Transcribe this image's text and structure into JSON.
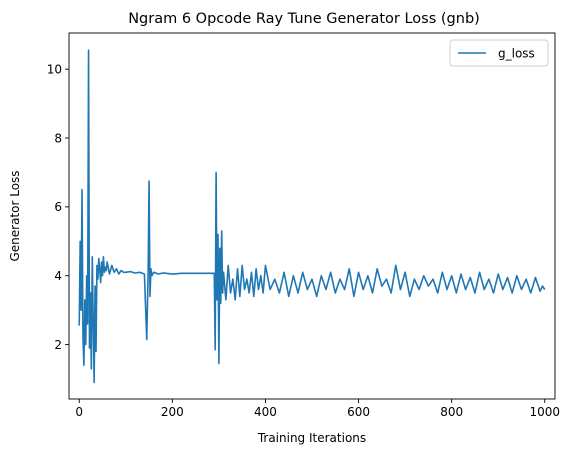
{
  "chart_data": {
    "type": "line",
    "title": "Ngram 6 Opcode Ray Tune Generator Loss (gnb)",
    "xlabel": "Training Iterations",
    "ylabel": "Generator Loss",
    "xlim": [
      -22,
      1022
    ],
    "ylim": [
      0.42,
      11.05
    ],
    "xticks": [
      0,
      200,
      400,
      600,
      800,
      1000
    ],
    "yticks": [
      2,
      4,
      6,
      8,
      10
    ],
    "grid": false,
    "legend_position": "top-right",
    "series_color": "#1f77b4",
    "series": [
      {
        "name": "g_loss",
        "x": [
          0,
          2,
          4,
          6,
          8,
          10,
          12,
          14,
          16,
          18,
          20,
          22,
          24,
          26,
          28,
          30,
          32,
          34,
          36,
          38,
          40,
          42,
          44,
          46,
          48,
          50,
          52,
          54,
          56,
          58,
          60,
          65,
          70,
          75,
          80,
          85,
          90,
          95,
          100,
          110,
          120,
          130,
          140,
          145,
          148,
          150,
          152,
          154,
          156,
          160,
          170,
          180,
          200,
          220,
          240,
          260,
          280,
          290,
          292,
          294,
          296,
          298,
          300,
          302,
          304,
          306,
          308,
          310,
          315,
          320,
          325,
          330,
          335,
          340,
          345,
          350,
          355,
          360,
          365,
          370,
          375,
          380,
          385,
          390,
          395,
          400,
          410,
          420,
          430,
          440,
          450,
          460,
          470,
          480,
          490,
          500,
          510,
          520,
          530,
          540,
          550,
          560,
          570,
          580,
          590,
          600,
          610,
          620,
          630,
          640,
          650,
          660,
          670,
          680,
          690,
          700,
          710,
          720,
          730,
          740,
          750,
          760,
          770,
          780,
          790,
          800,
          810,
          820,
          830,
          840,
          850,
          860,
          870,
          880,
          890,
          900,
          910,
          920,
          930,
          940,
          950,
          960,
          970,
          980,
          990,
          995,
          1000
        ],
        "values": [
          2.55,
          5.0,
          3.0,
          6.5,
          2.2,
          1.4,
          3.3,
          2.0,
          4.0,
          2.6,
          10.55,
          1.9,
          3.5,
          1.3,
          4.55,
          2.7,
          0.9,
          3.7,
          1.8,
          4.3,
          3.9,
          4.5,
          4.2,
          3.8,
          4.4,
          4.0,
          4.55,
          4.1,
          4.25,
          4.15,
          4.4,
          4.05,
          4.3,
          4.1,
          4.2,
          4.05,
          4.15,
          4.1,
          4.1,
          4.12,
          4.08,
          4.1,
          4.05,
          2.15,
          4.1,
          6.75,
          3.4,
          4.2,
          4.0,
          4.1,
          4.05,
          4.08,
          4.05,
          4.07,
          4.07,
          4.07,
          4.07,
          4.07,
          1.85,
          7.0,
          3.3,
          5.2,
          1.45,
          4.8,
          3.2,
          5.3,
          3.5,
          4.1,
          3.3,
          4.3,
          3.5,
          3.9,
          3.3,
          4.2,
          3.4,
          4.3,
          3.6,
          3.9,
          3.5,
          4.1,
          3.4,
          4.2,
          3.6,
          4.0,
          3.5,
          4.3,
          3.6,
          3.9,
          3.5,
          4.1,
          3.4,
          4.0,
          3.5,
          4.1,
          3.6,
          3.9,
          3.4,
          4.0,
          3.6,
          4.1,
          3.5,
          3.9,
          3.6,
          4.2,
          3.4,
          4.1,
          3.6,
          4.0,
          3.5,
          4.2,
          3.7,
          3.9,
          3.5,
          4.3,
          3.6,
          4.1,
          3.4,
          3.9,
          3.6,
          4.0,
          3.7,
          3.9,
          3.5,
          4.1,
          3.6,
          4.0,
          3.5,
          4.05,
          3.6,
          3.95,
          3.5,
          4.1,
          3.6,
          3.9,
          3.5,
          4.05,
          3.6,
          3.95,
          3.5,
          4.0,
          3.6,
          3.9,
          3.5,
          3.95,
          3.55,
          3.7,
          3.6
        ]
      }
    ]
  }
}
